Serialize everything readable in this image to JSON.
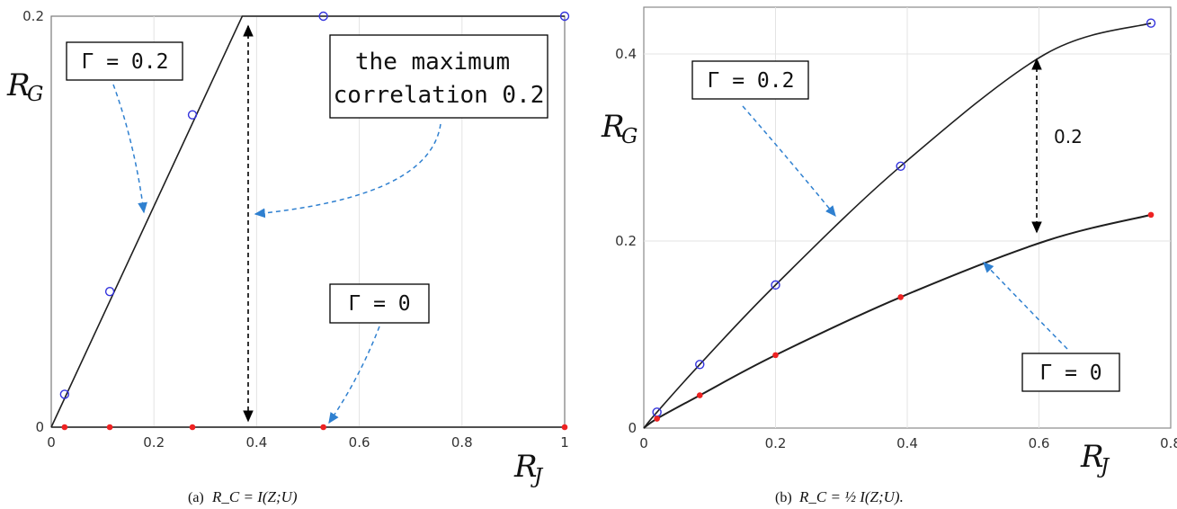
{
  "chart_data": [
    {
      "type": "line",
      "xlim": [
        0,
        1
      ],
      "ylim": [
        0,
        0.2
      ],
      "x_ticks": [
        "0",
        "0.2",
        "0.4",
        "0.6",
        "0.8",
        "1"
      ],
      "y_ticks": [
        "0",
        "0.2"
      ],
      "grid": true,
      "xlabel": "R",
      "xlabel_sub": "J",
      "ylabel": "R",
      "ylabel_sub": "G",
      "series": [
        {
          "name": "Γ = 0.2",
          "color": "#1f1f1f",
          "marker_color": "#3333dd",
          "marker": "circle",
          "line": [
            [
              0,
              0
            ],
            [
              0.372,
              0.2
            ],
            [
              1,
              0.2
            ]
          ],
          "markers": [
            [
              0.026,
              0.016
            ],
            [
              0.114,
              0.066
            ],
            [
              0.275,
              0.152
            ],
            [
              0.53,
              0.2
            ],
            [
              1,
              0.2
            ]
          ]
        },
        {
          "name": "Γ = 0",
          "color": "#1f1f1f",
          "marker_color": "#ee2222",
          "marker": "dot",
          "line": [
            [
              0,
              0
            ],
            [
              1,
              0
            ]
          ],
          "markers": [
            [
              0.026,
              0
            ],
            [
              0.114,
              0
            ],
            [
              0.275,
              0
            ],
            [
              0.53,
              0
            ],
            [
              1,
              0
            ]
          ]
        }
      ],
      "annotations": {
        "label_gamma02": "Γ = 0.2",
        "label_gamma0": "Γ = 0",
        "label_max_line1": "the maximum",
        "label_max_line2": "correlation 0.2"
      },
      "caption_prefix": "(a)",
      "caption_formula": "R_C = I(Z;U)"
    },
    {
      "type": "line",
      "xlim": [
        0,
        0.8
      ],
      "ylim": [
        0,
        0.45
      ],
      "x_ticks": [
        "0",
        "0.2",
        "0.4",
        "0.6",
        "0.8"
      ],
      "y_ticks": [
        "0",
        "0.2",
        "0.4"
      ],
      "grid": true,
      "xlabel": "R",
      "xlabel_sub": "J",
      "ylabel": "R",
      "ylabel_sub": "G",
      "series": [
        {
          "name": "Γ = 0.2",
          "color": "#1f1f1f",
          "marker_color": "#3333dd",
          "marker": "circle",
          "line": [
            [
              0,
              0
            ],
            [
              0.02,
              0.017
            ],
            [
              0.085,
              0.068
            ],
            [
              0.2,
              0.153
            ],
            [
              0.39,
              0.28
            ],
            [
              0.61,
              0.4
            ],
            [
              0.77,
              0.433
            ]
          ],
          "markers": [
            [
              0.02,
              0.017
            ],
            [
              0.085,
              0.068
            ],
            [
              0.2,
              0.153
            ],
            [
              0.39,
              0.28
            ],
            [
              0.77,
              0.433
            ]
          ]
        },
        {
          "name": "Γ = 0",
          "color": "#1f1f1f",
          "marker_color": "#ee2222",
          "marker": "dot",
          "line": [
            [
              0,
              0
            ],
            [
              0.02,
              0.01
            ],
            [
              0.085,
              0.035
            ],
            [
              0.2,
              0.078
            ],
            [
              0.39,
              0.14
            ],
            [
              0.61,
              0.2
            ],
            [
              0.77,
              0.228
            ]
          ],
          "markers": [
            [
              0.02,
              0.01
            ],
            [
              0.085,
              0.035
            ],
            [
              0.2,
              0.078
            ],
            [
              0.39,
              0.14
            ],
            [
              0.77,
              0.228
            ]
          ]
        }
      ],
      "annotations": {
        "label_gamma02": "Γ = 0.2",
        "label_gamma0": "Γ = 0",
        "gap_label": "0.2"
      },
      "caption_prefix": "(b)",
      "caption_formula": "R_C = ½ I(Z;U)."
    }
  ]
}
